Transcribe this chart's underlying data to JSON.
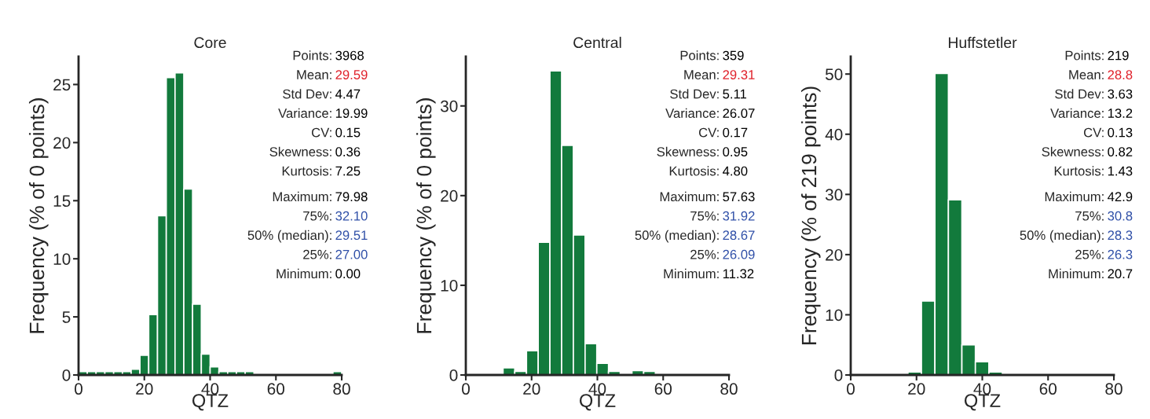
{
  "chart_data": [
    {
      "type": "histogram",
      "title": "Core",
      "xlabel": "QTZ",
      "ylabel": "Frequency (% of 0 points)",
      "color": "#127a3c",
      "bins": [
        0,
        2.67,
        5.33,
        8,
        10.67,
        13.33,
        16,
        18.67,
        21.33,
        24,
        26.67,
        29.33,
        32,
        34.67,
        37.33,
        40,
        42.67,
        45.33,
        48,
        50.67,
        53.33,
        56,
        58.67,
        61.33,
        64,
        66.67,
        69.33,
        72,
        74.67,
        77.33,
        80
      ],
      "values": [
        0.3,
        0.3,
        0.3,
        0.3,
        0.3,
        0.3,
        0.5,
        1.7,
        5.2,
        13.7,
        25.6,
        26.0,
        16.0,
        6.1,
        1.8,
        0.7,
        0.3,
        0.3,
        0.3,
        0.3,
        0,
        0,
        0,
        0,
        0,
        0,
        0,
        0,
        0,
        0.3
      ],
      "xlim": [
        0,
        80
      ],
      "xticks": [
        0,
        20,
        40,
        60,
        80
      ],
      "ylim": [
        0,
        27.4
      ],
      "yticks": [
        0,
        5,
        10,
        15,
        20,
        25
      ],
      "annotations": [
        "Points: 3968",
        "Mean: 29.59",
        "Std Dev: 4.47",
        "Variance: 19.99",
        "CV: 0.15",
        "Skewness: 0.36",
        "Kurtosis: 7.25",
        "Maximum: 79.98",
        "75%: 32.10",
        "50% (median): 29.51",
        "25%: 27.00",
        "Minimum: 0.00"
      ]
    },
    {
      "type": "histogram",
      "title": "Central",
      "xlabel": "QTZ",
      "ylabel": "Frequency (% of 0 points)",
      "color": "#127a3c",
      "bins": [
        11.32,
        14.88,
        18.45,
        22.01,
        25.57,
        29.13,
        32.69,
        36.26,
        39.82,
        43.38,
        46.94,
        50.51,
        54.07,
        57.63
      ],
      "values": [
        0.8,
        0.4,
        2.7,
        14.8,
        33.9,
        25.6,
        15.6,
        3.5,
        1.3,
        0.4,
        0,
        0.5,
        0.4
      ],
      "xlim": [
        0,
        80
      ],
      "xticks": [
        0,
        20,
        40,
        60,
        80
      ],
      "ylim": [
        0,
        35.5
      ],
      "yticks": [
        0,
        10,
        20,
        30
      ],
      "annotations": [
        "Points: 359",
        "Mean: 29.31",
        "Std Dev: 5.11",
        "Variance: 26.07",
        "CV: 0.17",
        "Skewness: 0.95",
        "Kurtosis: 4.80",
        "Maximum: 57.63",
        "75%: 31.92",
        "50% (median): 28.67",
        "25%: 26.09",
        "Minimum: 11.32"
      ]
    },
    {
      "type": "histogram",
      "title": "Huffstetler",
      "xlabel": "QTZ",
      "ylabel": "Frequency (% of 219 points)",
      "color": "#127a3c",
      "bins": [
        17.4,
        21.5,
        25.6,
        29.7,
        33.8,
        37.9,
        42.0,
        46.1
      ],
      "values": [
        0.5,
        12.3,
        50.1,
        29.1,
        5.0,
        2.2,
        0.5
      ],
      "xlim": [
        0,
        80
      ],
      "xticks": [
        0,
        20,
        40,
        60,
        80
      ],
      "ylim": [
        0,
        52.9
      ],
      "yticks": [
        0,
        10,
        20,
        30,
        40,
        50
      ],
      "annotations": [
        "Points: 219",
        "Mean: 28.8",
        "Std Dev: 3.63",
        "Variance: 13.2",
        "CV: 0.13",
        "Skewness: 0.82",
        "Kurtosis: 1.43",
        "Maximum: 42.9",
        "75%: 30.8",
        "50% (median): 28.3",
        "25%: 26.3",
        "Minimum: 20.7"
      ]
    }
  ]
}
